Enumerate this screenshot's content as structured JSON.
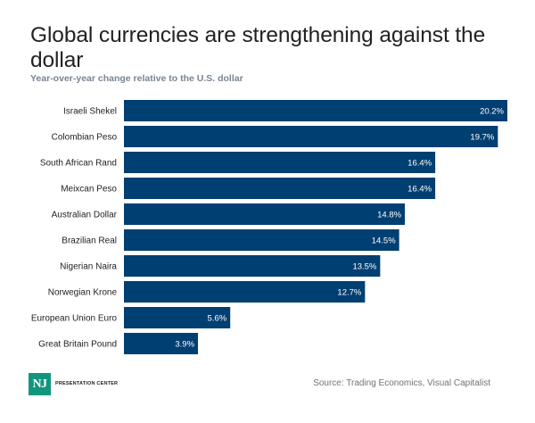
{
  "header": {
    "title": "Global currencies are strengthening against the dollar",
    "subtitle": "Year-over-year change relative to the U.S. dollar"
  },
  "footer": {
    "logo_mark": "NJ",
    "logo_text": "PRESENTATION CENTER",
    "source": "Source: Trading Economics, Visual Capitalist"
  },
  "colors": {
    "bar": "#003f72",
    "logo": "#12957d"
  },
  "chart_data": {
    "type": "bar",
    "orientation": "horizontal",
    "title": "Global currencies are strengthening against the dollar",
    "subtitle": "Year-over-year change relative to the U.S. dollar",
    "xlabel": "",
    "ylabel": "",
    "unit": "%",
    "xlim": [
      0,
      20.2
    ],
    "grid": false,
    "legend": "none",
    "categories": [
      "Israeli Shekel",
      "Colombian Peso",
      "South African Rand",
      "Meixcan Peso",
      "Australian Dollar",
      "Brazilian Real",
      "Nigerian Naira",
      "Norwegian Krone",
      "European Union Euro",
      "Great Britain Pound"
    ],
    "values": [
      20.2,
      19.7,
      16.4,
      16.4,
      14.8,
      14.5,
      13.5,
      12.7,
      5.6,
      3.9
    ],
    "data_labels": [
      "20.2%",
      "19.7%",
      "16.4%",
      "16.4%",
      "14.8%",
      "14.5%",
      "13.5%",
      "12.7%",
      "5.6%",
      "3.9%"
    ]
  }
}
